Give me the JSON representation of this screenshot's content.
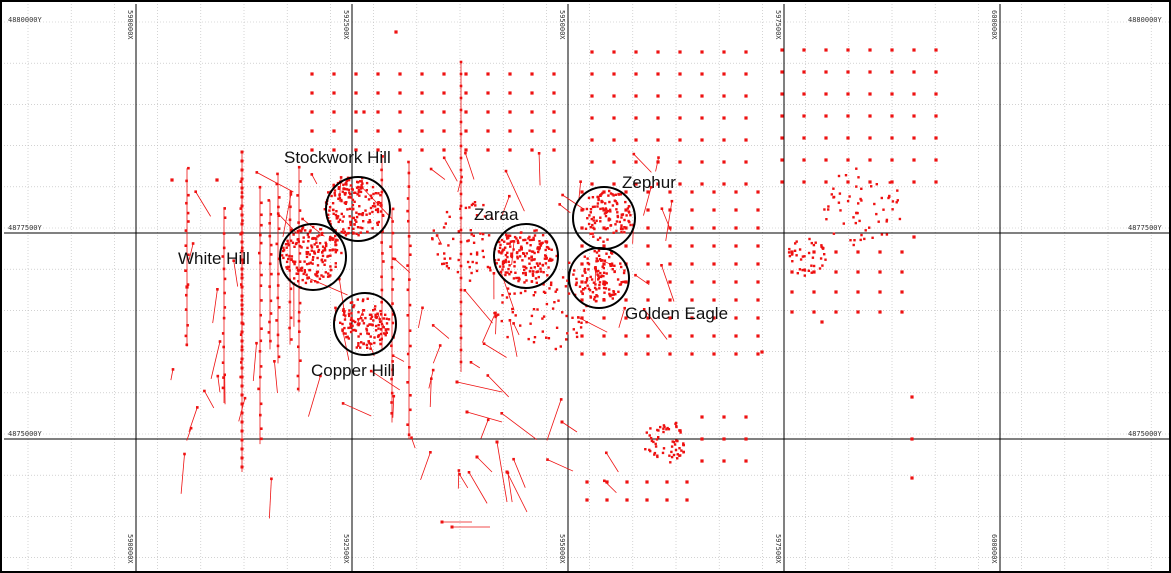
{
  "map": {
    "easting_labels_top": [
      "590000X",
      "592500X",
      "595000X",
      "597500X",
      "600000X"
    ],
    "easting_labels_bottom": [
      "590000X",
      "592500X",
      "595000X",
      "597500X",
      "600000X"
    ],
    "northing_labels_left": [
      "4880000Y",
      "4877500Y",
      "4875000Y"
    ],
    "northing_labels_right": [
      "4880000Y",
      "4877500Y",
      "4875000Y"
    ],
    "zones": [
      {
        "name": "Stockwork Hill"
      },
      {
        "name": "White Hill"
      },
      {
        "name": "Copper Hill"
      },
      {
        "name": "Zaraa"
      },
      {
        "name": "Zephur"
      },
      {
        "name": "Golden Eagle"
      }
    ],
    "colors": {
      "drillhole": "#ee1111",
      "major_grid": "#000000",
      "minor_grid": "#b8b8b8",
      "zone_circle": "#000000"
    }
  }
}
